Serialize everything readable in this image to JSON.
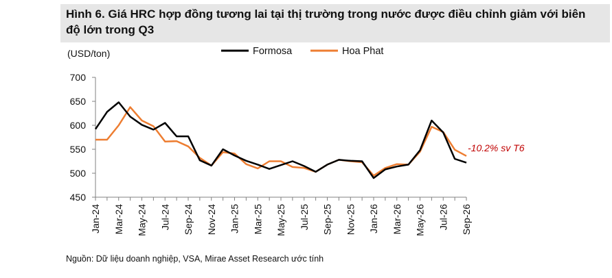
{
  "header": {
    "title": "Hình 6. Giá HRC hợp đồng tương lai tại thị trường trong nước được điều chỉnh giảm với biên độ lớn trong Q3"
  },
  "footer": {
    "source": "Nguồn: Dữ liệu doanh nghiệp, VSA, Mirae Asset Research ước tính"
  },
  "chart_data": {
    "type": "line",
    "unit_label": "(USD/ton)",
    "ylim": [
      450,
      700
    ],
    "yticks": [
      450,
      500,
      550,
      600,
      650,
      700
    ],
    "grid": false,
    "legend_position": "top-center",
    "categories": [
      "Jan-24",
      "Feb-24",
      "Mar-24",
      "Apr-24",
      "May-24",
      "Jun-24",
      "Jul-24",
      "Aug-24",
      "Sep-24",
      "Oct-24",
      "Nov-24",
      "Dec-24",
      "Jan-25",
      "Feb-25",
      "Mar-25",
      "Apr-25",
      "May-25",
      "Jun-25",
      "Jul-25",
      "Aug-25",
      "Sep-25",
      "Oct-25",
      "Nov-25",
      "Dec-25",
      "Jan-26",
      "Feb-26",
      "Mar-26",
      "Apr-26",
      "May-26",
      "Jun-26",
      "Jul-26",
      "Aug-26",
      "Sep-26"
    ],
    "tick_labels": [
      "Jan-24",
      "Mar-24",
      "May-24",
      "Jul-24",
      "Sep-24",
      "Nov-24",
      "Jan-25",
      "Mar-25",
      "May-25",
      "Jul-25",
      "Sep-25",
      "Nov-25",
      "Jan-26",
      "Mar-26",
      "May-26",
      "Jul-26",
      "Sep-26"
    ],
    "series": [
      {
        "name": "Formosa",
        "color": "#000000",
        "values": [
          592,
          628,
          648,
          618,
          601,
          591,
          605,
          577,
          577,
          527,
          516,
          550,
          537,
          526,
          518,
          509,
          517,
          525,
          515,
          503,
          518,
          528,
          526,
          525,
          490,
          508,
          514,
          518,
          548,
          610,
          585,
          530,
          522
        ]
      },
      {
        "name": "Hoa Phat",
        "color": "#ed7d31",
        "values": [
          570,
          570,
          600,
          638,
          610,
          598,
          566,
          567,
          556,
          532,
          516,
          544,
          541,
          519,
          510,
          525,
          525,
          513,
          511,
          503,
          518,
          528,
          525,
          523,
          495,
          511,
          519,
          518,
          545,
          597,
          586,
          549,
          536
        ]
      }
    ],
    "annotation": {
      "text": "-10.2% sv T6",
      "color": "#c00000",
      "series": "Hoa Phat"
    }
  }
}
